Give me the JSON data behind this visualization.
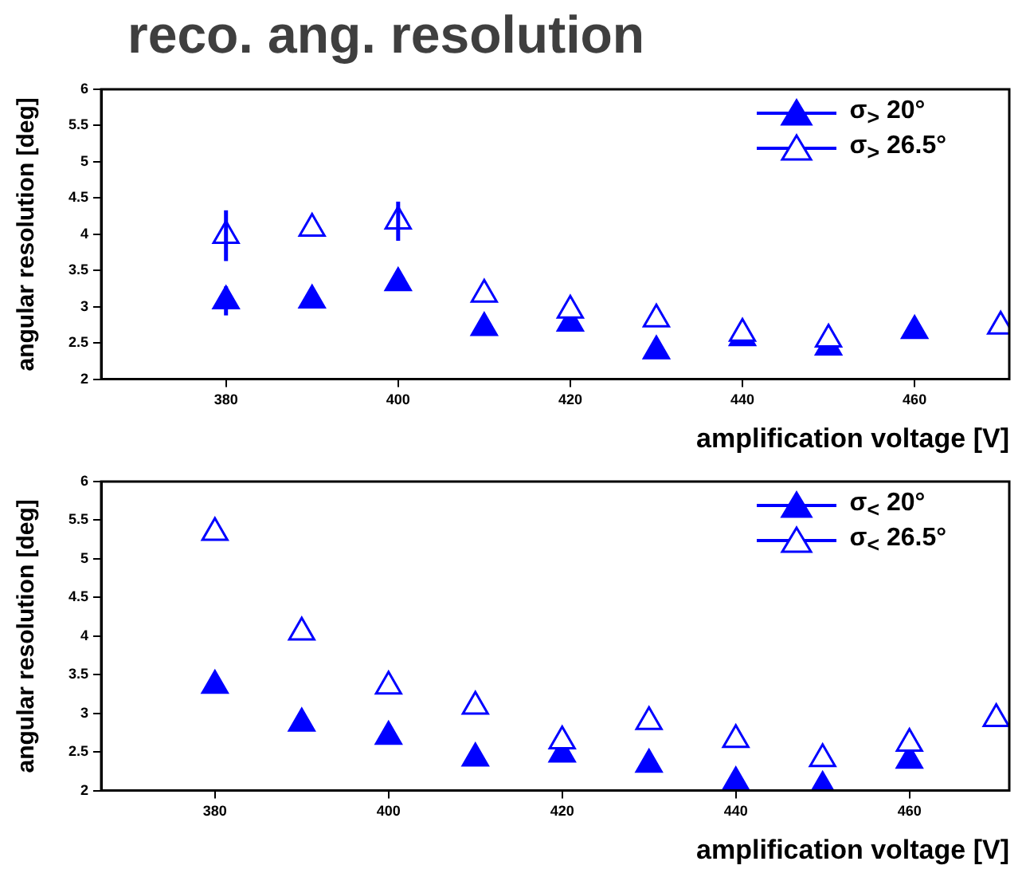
{
  "chart_data": [
    {
      "type": "scatter",
      "title": "reco. ang. resolution",
      "xlabel": "amplification voltage [V]",
      "ylabel": "angular resolution [deg]",
      "x": [
        380,
        390,
        400,
        410,
        420,
        430,
        440,
        450,
        460,
        470
      ],
      "xlim": [
        365.5,
        471
      ],
      "xticks": [
        380,
        400,
        420,
        440,
        460
      ],
      "ylim": [
        2,
        6
      ],
      "yticks": [
        2,
        2.5,
        3,
        3.5,
        4,
        4.5,
        5,
        5.5,
        6
      ],
      "grid": false,
      "legend": "top right",
      "marker": "triangle",
      "series": [
        {
          "name": "σ$_{>}$ 20°",
          "color": "#0000ff",
          "values": [
            3.08,
            3.09,
            3.33,
            2.71,
            2.77,
            2.39,
            2.57,
            2.44,
            2.67,
            null
          ],
          "errors": [
            0.2,
            null,
            null,
            null,
            null,
            null,
            null,
            null,
            null,
            null
          ]
        },
        {
          "name": "σ$_{>}$ 26.5°",
          "color": "#0000ff",
          "values": [
            3.98,
            4.08,
            4.18,
            3.17,
            2.95,
            2.83,
            2.63,
            2.55,
            null,
            2.73
          ],
          "errors": [
            0.35,
            null,
            0.27,
            null,
            null,
            null,
            null,
            null,
            null,
            null
          ]
        }
      ]
    },
    {
      "type": "scatter",
      "xlabel": "amplification voltage [V]",
      "ylabel": "angular resolution [deg]",
      "x": [
        380,
        390,
        400,
        410,
        420,
        430,
        440,
        450,
        460,
        470
      ],
      "xlim": [
        366.9,
        471.5
      ],
      "xticks": [
        380,
        400,
        420,
        440,
        460
      ],
      "ylim": [
        2,
        6
      ],
      "yticks": [
        2,
        2.5,
        3,
        3.5,
        4,
        4.5,
        5,
        5.5,
        6
      ],
      "grid": false,
      "legend": "top right",
      "marker": "triangle",
      "series": [
        {
          "name": "σ$_{<}$ 20°",
          "color": "#0000ff",
          "values": [
            3.36,
            2.87,
            2.7,
            2.42,
            2.47,
            2.34,
            2.11,
            2.05,
            2.39,
            null
          ]
        },
        {
          "name": "σ$_{<}$ 26.5°",
          "color": "#0000ff",
          "values": [
            5.34,
            4.05,
            3.35,
            3.09,
            2.64,
            2.89,
            2.66,
            2.41,
            2.61,
            2.93
          ]
        }
      ]
    }
  ]
}
